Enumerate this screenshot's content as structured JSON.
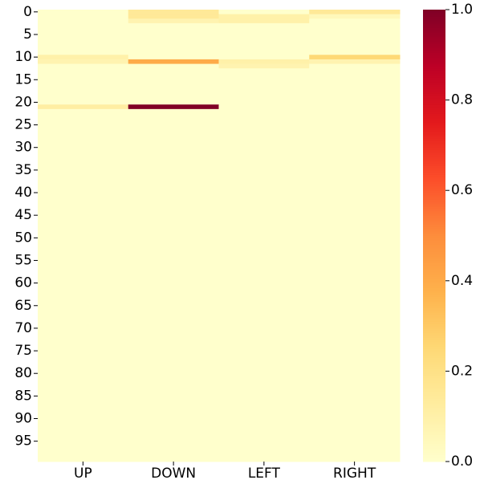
{
  "chart_data": {
    "type": "heatmap",
    "categories": [
      "UP",
      "DOWN",
      "LEFT",
      "RIGHT"
    ],
    "yticks": [
      0,
      5,
      10,
      15,
      20,
      25,
      30,
      35,
      40,
      45,
      50,
      55,
      60,
      65,
      70,
      75,
      80,
      85,
      90,
      95
    ],
    "clim": [
      0,
      1
    ],
    "colorbar_ticks": [
      {
        "value": 0,
        "label": "0.0"
      },
      0.2,
      0.4,
      0.6,
      0.8,
      {
        "value": 1,
        "label": "1.0"
      }
    ],
    "colormap": "YlOrRd",
    "values": [
      [
        0,
        0.15,
        0,
        0.15
      ],
      [
        0,
        0.15,
        0.1,
        0.05
      ],
      [
        0,
        0.08,
        0.1,
        0
      ],
      [
        0,
        0,
        0,
        0
      ],
      [
        0,
        0,
        0,
        0
      ],
      [
        0,
        0,
        0,
        0
      ],
      [
        0,
        0,
        0,
        0
      ],
      [
        0,
        0,
        0,
        0
      ],
      [
        0,
        0,
        0,
        0
      ],
      [
        0,
        0,
        0,
        0
      ],
      [
        0.1,
        0,
        0,
        0.25
      ],
      [
        0.08,
        0.4,
        0.1,
        0.08
      ],
      [
        0,
        0,
        0.08,
        0
      ],
      [
        0,
        0,
        0,
        0
      ],
      [
        0,
        0,
        0,
        0
      ],
      [
        0,
        0,
        0,
        0
      ],
      [
        0,
        0,
        0,
        0
      ],
      [
        0,
        0,
        0,
        0
      ],
      [
        0,
        0,
        0,
        0
      ],
      [
        0,
        0,
        0,
        0
      ],
      [
        0,
        0,
        0,
        0
      ],
      [
        0.12,
        1,
        0,
        0
      ],
      [
        0,
        0,
        0,
        0
      ],
      [
        0,
        0,
        0,
        0
      ],
      [
        0,
        0,
        0,
        0
      ],
      [
        0,
        0,
        0,
        0
      ],
      [
        0,
        0,
        0,
        0
      ],
      [
        0,
        0,
        0,
        0
      ],
      [
        0,
        0,
        0,
        0
      ],
      [
        0,
        0,
        0,
        0
      ],
      [
        0,
        0,
        0,
        0
      ],
      [
        0,
        0,
        0,
        0
      ],
      [
        0,
        0,
        0,
        0
      ],
      [
        0,
        0,
        0,
        0
      ],
      [
        0,
        0,
        0,
        0
      ],
      [
        0,
        0,
        0,
        0
      ],
      [
        0,
        0,
        0,
        0
      ],
      [
        0,
        0,
        0,
        0
      ],
      [
        0,
        0,
        0,
        0
      ],
      [
        0,
        0,
        0,
        0
      ],
      [
        0,
        0,
        0,
        0
      ],
      [
        0,
        0,
        0,
        0
      ],
      [
        0,
        0,
        0,
        0
      ],
      [
        0,
        0,
        0,
        0
      ],
      [
        0,
        0,
        0,
        0
      ],
      [
        0,
        0,
        0,
        0
      ],
      [
        0,
        0,
        0,
        0
      ],
      [
        0,
        0,
        0,
        0
      ],
      [
        0,
        0,
        0,
        0
      ],
      [
        0,
        0,
        0,
        0
      ],
      [
        0,
        0,
        0,
        0
      ],
      [
        0,
        0,
        0,
        0
      ],
      [
        0,
        0,
        0,
        0
      ],
      [
        0,
        0,
        0,
        0
      ],
      [
        0,
        0,
        0,
        0
      ],
      [
        0,
        0,
        0,
        0
      ],
      [
        0,
        0,
        0,
        0
      ],
      [
        0,
        0,
        0,
        0
      ],
      [
        0,
        0,
        0,
        0
      ],
      [
        0,
        0,
        0,
        0
      ],
      [
        0,
        0,
        0,
        0
      ],
      [
        0,
        0,
        0,
        0
      ],
      [
        0,
        0,
        0,
        0
      ],
      [
        0,
        0,
        0,
        0
      ],
      [
        0,
        0,
        0,
        0
      ],
      [
        0,
        0,
        0,
        0
      ],
      [
        0,
        0,
        0,
        0
      ],
      [
        0,
        0,
        0,
        0
      ],
      [
        0,
        0,
        0,
        0
      ],
      [
        0,
        0,
        0,
        0
      ],
      [
        0,
        0,
        0,
        0
      ],
      [
        0,
        0,
        0,
        0
      ],
      [
        0,
        0,
        0,
        0
      ],
      [
        0,
        0,
        0,
        0
      ],
      [
        0,
        0,
        0,
        0
      ],
      [
        0,
        0,
        0,
        0
      ],
      [
        0,
        0,
        0,
        0
      ],
      [
        0,
        0,
        0,
        0
      ],
      [
        0,
        0,
        0,
        0
      ],
      [
        0,
        0,
        0,
        0
      ],
      [
        0,
        0,
        0,
        0
      ],
      [
        0,
        0,
        0,
        0
      ],
      [
        0,
        0,
        0,
        0
      ],
      [
        0,
        0,
        0,
        0
      ],
      [
        0,
        0,
        0,
        0
      ],
      [
        0,
        0,
        0,
        0
      ],
      [
        0,
        0,
        0,
        0
      ],
      [
        0,
        0,
        0,
        0
      ],
      [
        0,
        0,
        0,
        0
      ],
      [
        0,
        0,
        0,
        0
      ],
      [
        0,
        0,
        0,
        0
      ],
      [
        0,
        0,
        0,
        0
      ],
      [
        0,
        0,
        0,
        0
      ],
      [
        0,
        0,
        0,
        0
      ],
      [
        0,
        0,
        0,
        0
      ],
      [
        0,
        0,
        0,
        0
      ],
      [
        0,
        0,
        0,
        0
      ],
      [
        0,
        0,
        0,
        0
      ],
      [
        0,
        0,
        0,
        0
      ],
      [
        0,
        0,
        0,
        0
      ]
    ]
  }
}
